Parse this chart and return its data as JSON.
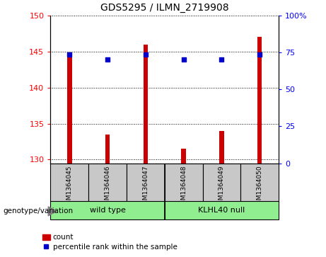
{
  "title": "GDS5295 / ILMN_2719908",
  "samples": [
    "GSM1364045",
    "GSM1364046",
    "GSM1364047",
    "GSM1364048",
    "GSM1364049",
    "GSM1364050"
  ],
  "counts": [
    144.5,
    133.5,
    146.0,
    131.5,
    134.0,
    147.0
  ],
  "percentile_ranks": [
    73.5,
    70.0,
    73.5,
    70.0,
    70.0,
    73.5
  ],
  "ylim_left": [
    129.5,
    150
  ],
  "ylim_right": [
    0,
    100
  ],
  "yticks_left": [
    130,
    135,
    140,
    145,
    150
  ],
  "yticks_right": [
    0,
    25,
    50,
    75,
    100
  ],
  "group_divider": 2.5,
  "bar_color": "#cc0000",
  "dot_color": "#0000cc",
  "background_color": "#c8c8c8",
  "green_color": "#90ee90",
  "genotype_label": "genotype/variation",
  "legend_count": "count",
  "legend_percentile": "percentile rank within the sample",
  "bar_bottom": 129.5,
  "bar_width": 0.12
}
